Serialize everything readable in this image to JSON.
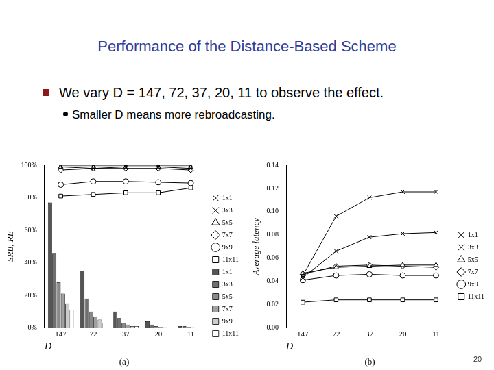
{
  "slide": {
    "title": "Performance of the Distance-Based Scheme",
    "bullet": "We vary D = 147, 72, 37, 20, 11 to observe the effect.",
    "sub_bullet": "Smaller D means more rebroadcasting.",
    "page_number": "20"
  },
  "chart_data": [
    {
      "type": "bar",
      "caption": "(a)",
      "x_label": "D",
      "y_label": "SRB, RE",
      "categories": [
        "147",
        "72",
        "37",
        "20",
        "11"
      ],
      "ylim": [
        0,
        100
      ],
      "yticks": [
        {
          "value": 0,
          "label": "0%"
        },
        {
          "value": 20,
          "label": "20%"
        },
        {
          "value": 40,
          "label": "40%"
        },
        {
          "value": 60,
          "label": "60%"
        },
        {
          "value": 80,
          "label": "80%"
        },
        {
          "value": 100,
          "label": "100%"
        }
      ],
      "grid": false,
      "legend": "right",
      "series": [
        {
          "name": "1x1",
          "type": "bar",
          "color": "#555555",
          "values": [
            77,
            35,
            10,
            4,
            1
          ]
        },
        {
          "name": "3x3",
          "type": "bar",
          "color": "#6f6f6f",
          "values": [
            46,
            18,
            6,
            2,
            1
          ]
        },
        {
          "name": "5x5",
          "type": "bar",
          "color": "#888888",
          "values": [
            28,
            10,
            3,
            1,
            0.5
          ]
        },
        {
          "name": "7x7",
          "type": "bar",
          "color": "#a0a0a0",
          "values": [
            21,
            7,
            2,
            0.5,
            0.3
          ]
        },
        {
          "name": "9x9",
          "type": "bar",
          "color": "#cccccc",
          "values": [
            15,
            5,
            1,
            0.3,
            0.2
          ]
        },
        {
          "name": "11x11",
          "type": "bar",
          "color": "#ffffff",
          "values": [
            11,
            3,
            1,
            0.2,
            0.1
          ]
        },
        {
          "name": "1x1",
          "type": "line",
          "color": "#000000",
          "marker": "x",
          "values": [
            100,
            100,
            100,
            100,
            100
          ]
        },
        {
          "name": "3x3",
          "type": "line",
          "color": "#000000",
          "marker": "x",
          "values": [
            99,
            98,
            99,
            99,
            98
          ]
        },
        {
          "name": "5x5",
          "type": "line",
          "color": "#000000",
          "marker": "triangle",
          "values": [
            99,
            99,
            99,
            99,
            99
          ]
        },
        {
          "name": "7x7",
          "type": "line",
          "color": "#000000",
          "marker": "diamond",
          "values": [
            97,
            98,
            98,
            98,
            97
          ]
        },
        {
          "name": "9x9",
          "type": "line",
          "color": "#000000",
          "marker": "circle",
          "values": [
            88,
            90,
            90,
            89.5,
            89
          ]
        },
        {
          "name": "11x11",
          "type": "line",
          "color": "#000000",
          "marker": "square",
          "values": [
            81,
            82,
            83,
            83,
            86
          ]
        }
      ]
    },
    {
      "type": "line",
      "caption": "(b)",
      "x_label": "D",
      "y_label": "Average latency",
      "categories": [
        "147",
        "72",
        "37",
        "20",
        "11"
      ],
      "ylim": [
        0,
        0.14
      ],
      "yticks": [
        {
          "value": 0,
          "label": "0.00"
        },
        {
          "value": 0.02,
          "label": "0.02"
        },
        {
          "value": 0.04,
          "label": "0.04"
        },
        {
          "value": 0.06,
          "label": "0.06"
        },
        {
          "value": 0.08,
          "label": "0.08"
        },
        {
          "value": 0.1,
          "label": "0.10"
        },
        {
          "value": 0.12,
          "label": "0.12"
        },
        {
          "value": 0.14,
          "label": "0.14"
        }
      ],
      "grid": false,
      "legend": "right",
      "series": [
        {
          "name": "1x1",
          "color": "#000000",
          "marker": "x",
          "values": [
            0.045,
            0.096,
            0.112,
            0.117,
            0.117
          ]
        },
        {
          "name": "3x3",
          "color": "#000000",
          "marker": "x",
          "values": [
            0.043,
            0.066,
            0.078,
            0.081,
            0.082
          ]
        },
        {
          "name": "5x5",
          "color": "#000000",
          "marker": "triangle",
          "values": [
            0.047,
            0.052,
            0.053,
            0.054,
            0.054
          ]
        },
        {
          "name": "7x7",
          "color": "#000000",
          "marker": "diamond",
          "values": [
            0.046,
            0.053,
            0.054,
            0.053,
            0.052
          ]
        },
        {
          "name": "9x9",
          "color": "#000000",
          "marker": "circle",
          "values": [
            0.041,
            0.045,
            0.046,
            0.045,
            0.045
          ]
        },
        {
          "name": "11x11",
          "color": "#000000",
          "marker": "square",
          "values": [
            0.022,
            0.024,
            0.024,
            0.024,
            0.024
          ]
        }
      ]
    }
  ]
}
